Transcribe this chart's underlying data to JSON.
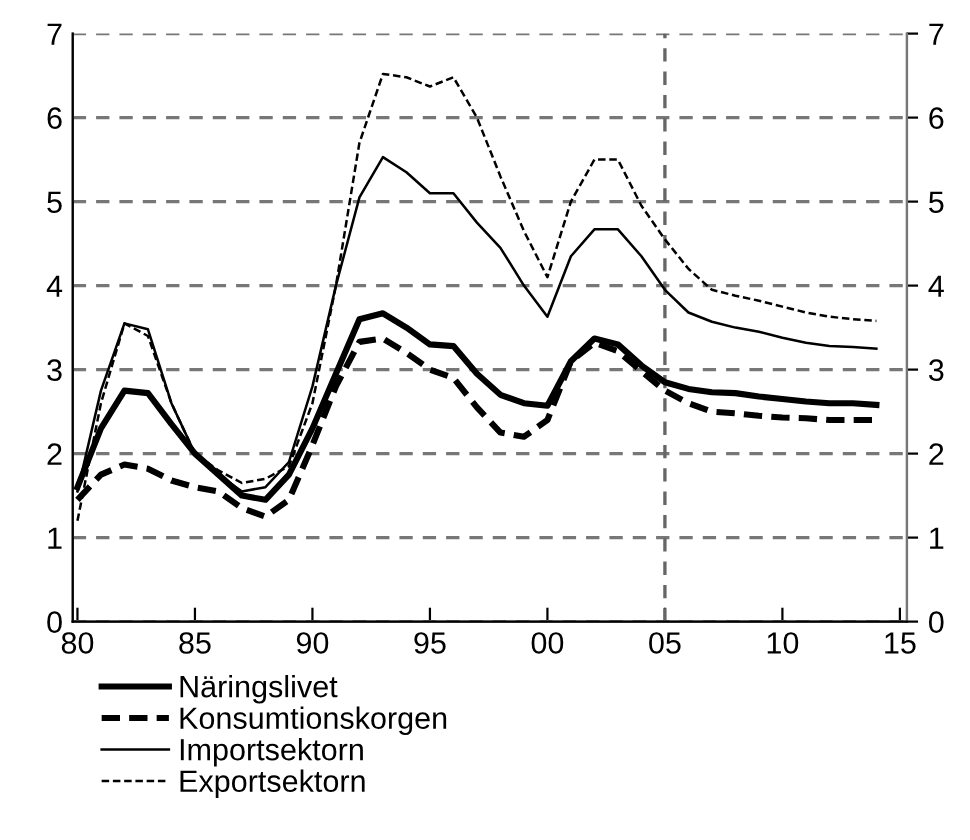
{
  "chart_data": {
    "type": "line",
    "x": [
      1980,
      1981,
      1982,
      1983,
      1984,
      1985,
      1986,
      1987,
      1988,
      1989,
      1990,
      1991,
      1992,
      1993,
      1994,
      1995,
      1996,
      1997,
      1998,
      1999,
      2000,
      2001,
      2002,
      2003,
      2004,
      2005,
      2006,
      2007,
      2008,
      2009,
      2010,
      2011,
      2012,
      2013,
      2014
    ],
    "series": [
      {
        "name": "Näringslivet",
        "color": "#000000",
        "line_style": "solid",
        "values": [
          1.6,
          2.3,
          2.75,
          2.72,
          2.35,
          2.0,
          1.75,
          1.5,
          1.45,
          1.75,
          2.3,
          2.95,
          3.6,
          3.67,
          3.5,
          3.3,
          3.28,
          2.95,
          2.7,
          2.6,
          2.57,
          3.1,
          3.37,
          3.3,
          3.05,
          2.85,
          2.77,
          2.73,
          2.72,
          2.68,
          2.65,
          2.62,
          2.6,
          2.6,
          2.58
        ]
      },
      {
        "name": "Konsumtionskorgen",
        "color": "#000000",
        "line_style": "dashed",
        "values": [
          1.45,
          1.75,
          1.87,
          1.82,
          1.68,
          1.6,
          1.55,
          1.35,
          1.25,
          1.45,
          2.1,
          2.8,
          3.33,
          3.37,
          3.2,
          3.0,
          2.9,
          2.55,
          2.25,
          2.2,
          2.4,
          3.1,
          3.32,
          3.22,
          2.98,
          2.75,
          2.6,
          2.5,
          2.48,
          2.45,
          2.43,
          2.42,
          2.4,
          2.4,
          2.4
        ]
      },
      {
        "name": "Importsektorn",
        "color": "#000000",
        "line_style": "solid",
        "values": [
          1.55,
          2.75,
          3.55,
          3.48,
          2.6,
          2.0,
          1.75,
          1.55,
          1.6,
          1.9,
          2.8,
          4.0,
          5.05,
          5.53,
          5.35,
          5.1,
          5.1,
          4.75,
          4.45,
          4.0,
          3.63,
          4.35,
          4.67,
          4.67,
          4.35,
          3.95,
          3.68,
          3.57,
          3.5,
          3.45,
          3.38,
          3.32,
          3.28,
          3.27,
          3.25
        ]
      },
      {
        "name": "Exportsektorn",
        "color": "#000000",
        "line_style": "dashed",
        "values": [
          1.2,
          2.6,
          3.55,
          3.4,
          2.6,
          2.0,
          1.8,
          1.65,
          1.7,
          1.85,
          2.6,
          4.0,
          5.7,
          6.52,
          6.48,
          6.37,
          6.48,
          6.0,
          5.3,
          4.65,
          4.1,
          5.0,
          5.5,
          5.5,
          4.95,
          4.55,
          4.2,
          3.95,
          3.88,
          3.82,
          3.75,
          3.68,
          3.63,
          3.6,
          3.58
        ]
      }
    ],
    "xlim": [
      1979.8,
      2015.3
    ],
    "xticks": [
      {
        "value": 1980,
        "label": "80"
      },
      {
        "value": 1985,
        "label": "85"
      },
      {
        "value": 1990,
        "label": "90"
      },
      {
        "value": 1995,
        "label": "95"
      },
      {
        "value": 2000,
        "label": "00"
      },
      {
        "value": 2005,
        "label": "05"
      },
      {
        "value": 2010,
        "label": "10"
      },
      {
        "value": 2015,
        "label": "15"
      }
    ],
    "ylim": [
      0,
      7
    ],
    "yticks": [
      0,
      1,
      2,
      3,
      4,
      5,
      6,
      7
    ],
    "y2lim": [
      0,
      7
    ],
    "y2ticks": [
      0,
      1,
      2,
      3,
      4,
      5,
      6,
      7
    ],
    "ref_lines": [
      {
        "axis": "x",
        "value": 2005,
        "color": "#666666",
        "line_style": "dashed"
      }
    ],
    "grid": "y",
    "legend": "bottom",
    "marker": "none"
  }
}
